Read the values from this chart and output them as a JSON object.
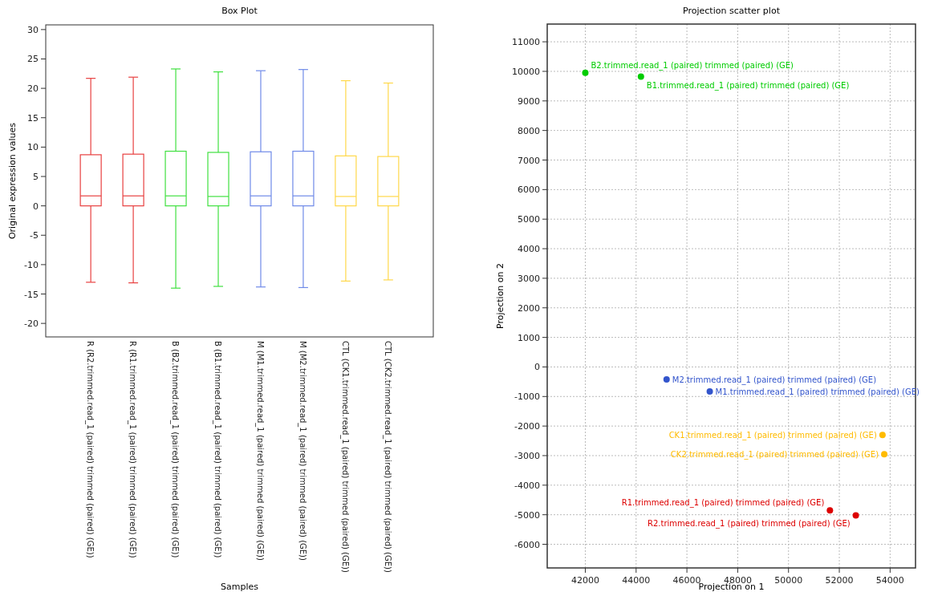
{
  "chart_data": [
    {
      "type": "box",
      "title": "Box Plot",
      "xlabel": "Samples",
      "ylabel": "Original expression values",
      "categories": [
        "R (R2.trimmed.read_1 (paired) trimmed (paired) (GE))",
        "R (R1.trimmed.read_1 (paired) trimmed (paired) (GE))",
        "B (B2.trimmed.read_1 (paired) trimmed (paired) (GE))",
        "B (B1.trimmed.read_1 (paired) trimmed (paired) (GE))",
        "M (M1.trimmed.read_1 (paired) trimmed (paired) (GE))",
        "M (M2.trimmed.read_1 (paired) trimmed (paired) (GE))",
        "CTL (CK1.trimmed.read_1 (paired) trimmed (paired) (GE))",
        "CTL (CK2.trimmed.read_1 (paired) trimmed (paired) (GE))"
      ],
      "boxes": [
        {
          "low": -13,
          "q1": 0,
          "median": 1.7,
          "q3": 8.7,
          "high": 21.7
        },
        {
          "low": -13.1,
          "q1": 0,
          "median": 1.7,
          "q3": 8.8,
          "high": 21.9
        },
        {
          "low": -14,
          "q1": 0,
          "median": 1.7,
          "q3": 9.3,
          "high": 23.3
        },
        {
          "low": -13.7,
          "q1": 0,
          "median": 1.6,
          "q3": 9.1,
          "high": 22.8
        },
        {
          "low": -13.8,
          "q1": 0,
          "median": 1.7,
          "q3": 9.2,
          "high": 23
        },
        {
          "low": -13.9,
          "q1": 0,
          "median": 1.7,
          "q3": 9.3,
          "high": 23.2
        },
        {
          "low": -12.8,
          "q1": 0,
          "median": 1.6,
          "q3": 8.5,
          "high": 21.3
        },
        {
          "low": -12.6,
          "q1": 0,
          "median": 1.6,
          "q3": 8.4,
          "high": 20.9
        }
      ],
      "colors": [
        "#e84040",
        "#e84040",
        "#40e040",
        "#40e040",
        "#6f8ae8",
        "#6f8ae8",
        "#ffd84a",
        "#ffd84a"
      ],
      "ylim": [
        -22.3,
        30.8
      ],
      "yticks": [
        -20,
        -15,
        -10,
        -5,
        0,
        5,
        10,
        15,
        20,
        25,
        30
      ]
    },
    {
      "type": "scatter",
      "title": "Projection scatter plot",
      "xlabel": "Projection on 1",
      "ylabel": "Projection on 2",
      "xlim": [
        40500,
        55000
      ],
      "xticks": [
        42000,
        44000,
        46000,
        48000,
        50000,
        52000,
        54000
      ],
      "ylim": [
        -6800,
        11600
      ],
      "yticks": [
        -6000,
        -5000,
        -4000,
        -3000,
        -2000,
        -1000,
        0,
        1000,
        2000,
        3000,
        4000,
        5000,
        6000,
        7000,
        8000,
        9000,
        10000,
        11000
      ],
      "grid": true,
      "marker": "circle",
      "series": [
        {
          "name": "B2.trimmed.read_1 (paired) trimmed (paired) (GE)",
          "color": "#00cc00",
          "x": [
            42000
          ],
          "values": [
            9950
          ]
        },
        {
          "name": "B1.trimmed.read_1 (paired) trimmed (paired) (GE)",
          "color": "#00cc00",
          "x": [
            44190
          ],
          "values": [
            9820
          ]
        },
        {
          "name": "M2.trimmed.read_1 (paired) trimmed (paired) (GE)",
          "color": "#3355cc",
          "x": [
            45200
          ],
          "values": [
            -420
          ]
        },
        {
          "name": "M1.trimmed.read_1 (paired) trimmed (paired) (GE)",
          "color": "#3355cc",
          "x": [
            46900
          ],
          "values": [
            -830
          ]
        },
        {
          "name": "CK1.trimmed.read_1 (paired) trimmed (paired) (GE)",
          "color": "#ffbb00",
          "x": [
            53700
          ],
          "values": [
            -2300
          ]
        },
        {
          "name": "CK2.trimmed.read_1 (paired) trimmed (paired) (GE)",
          "color": "#ffbb00",
          "x": [
            53770
          ],
          "values": [
            -2950
          ]
        },
        {
          "name": "R1.trimmed.read_1 (paired) trimmed (paired) (GE)",
          "color": "#dd0000",
          "x": [
            51630
          ],
          "values": [
            -4850
          ]
        },
        {
          "name": "R2.trimmed.read_1 (paired) trimmed (paired) (GE)",
          "color": "#dd0000",
          "x": [
            52650
          ],
          "values": [
            -5020
          ]
        }
      ]
    }
  ]
}
